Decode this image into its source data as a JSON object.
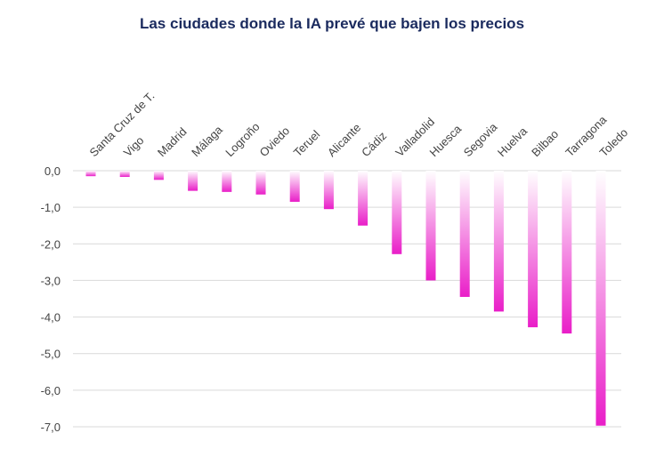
{
  "chart_data": {
    "type": "bar",
    "title": "Las ciudades donde la IA prevé que bajen los precios",
    "xlabel": "",
    "ylabel": "",
    "categories": [
      "Santa Cruz de T.",
      "Vigo",
      "Madrid",
      "Málaga",
      "Logroño",
      "Oviedo",
      "Teruel",
      "Alicante",
      "Cádiz",
      "Valladolid",
      "Huesca",
      "Segovia",
      "Huelva",
      "Bilbao",
      "Tarragona",
      "Toledo"
    ],
    "values": [
      -0.15,
      -0.17,
      -0.25,
      -0.55,
      -0.58,
      -0.65,
      -0.85,
      -1.05,
      -1.5,
      -2.28,
      -3.0,
      -3.45,
      -3.85,
      -4.28,
      -4.45,
      -6.97
    ],
    "yticks": [
      "0,0",
      "-1,0",
      "-2,0",
      "-3,0",
      "-4,0",
      "-5,0",
      "-6,0",
      "-7,0"
    ],
    "ylim": [
      -7,
      0
    ],
    "grid": true,
    "legend": "none",
    "colors": {
      "title": "#1a2a5e",
      "bar_top": "#ffffff",
      "bar_bottom": "#e91ec8",
      "grid": "#d9d9d9",
      "text": "#444444"
    }
  }
}
